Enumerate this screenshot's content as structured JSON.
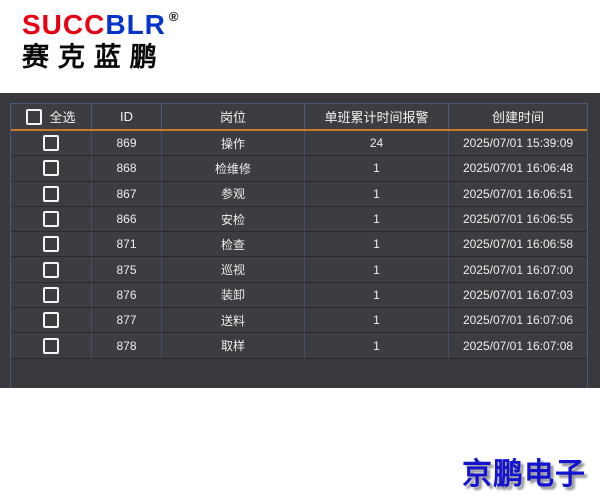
{
  "logo": {
    "brand_red": "SUCC",
    "brand_blue": "BLR",
    "registered": "®",
    "brand_cn": "赛克蓝鹏"
  },
  "table": {
    "select_all_label": "全选",
    "columns": [
      "ID",
      "岗位",
      "单班累计时间报警",
      "创建时间"
    ],
    "rows": [
      {
        "id": "869",
        "position": "操作",
        "alarm": "24",
        "created": "2025/07/01 15:39:09"
      },
      {
        "id": "868",
        "position": "检维修",
        "alarm": "1",
        "created": "2025/07/01 16:06:48"
      },
      {
        "id": "867",
        "position": "参观",
        "alarm": "1",
        "created": "2025/07/01 16:06:51"
      },
      {
        "id": "866",
        "position": "安检",
        "alarm": "1",
        "created": "2025/07/01 16:06:55"
      },
      {
        "id": "871",
        "position": "检查",
        "alarm": "1",
        "created": "2025/07/01 16:06:58"
      },
      {
        "id": "875",
        "position": "巡视",
        "alarm": "1",
        "created": "2025/07/01 16:07:00"
      },
      {
        "id": "876",
        "position": "装卸",
        "alarm": "1",
        "created": "2025/07/01 16:07:03"
      },
      {
        "id": "877",
        "position": "送料",
        "alarm": "1",
        "created": "2025/07/01 16:07:06"
      },
      {
        "id": "878",
        "position": "取样",
        "alarm": "1",
        "created": "2025/07/01 16:07:08"
      }
    ]
  },
  "footer": {
    "brand": "京鹏电子"
  },
  "colors": {
    "accent_orange": "#c77b28",
    "separator_blue": "#4a5a7c",
    "panel_bg": "#39393d",
    "row_bg": "#3c3c41",
    "logo_red": "#e60012",
    "logo_blue": "#0433cc",
    "footer_blue": "#1414cf"
  }
}
